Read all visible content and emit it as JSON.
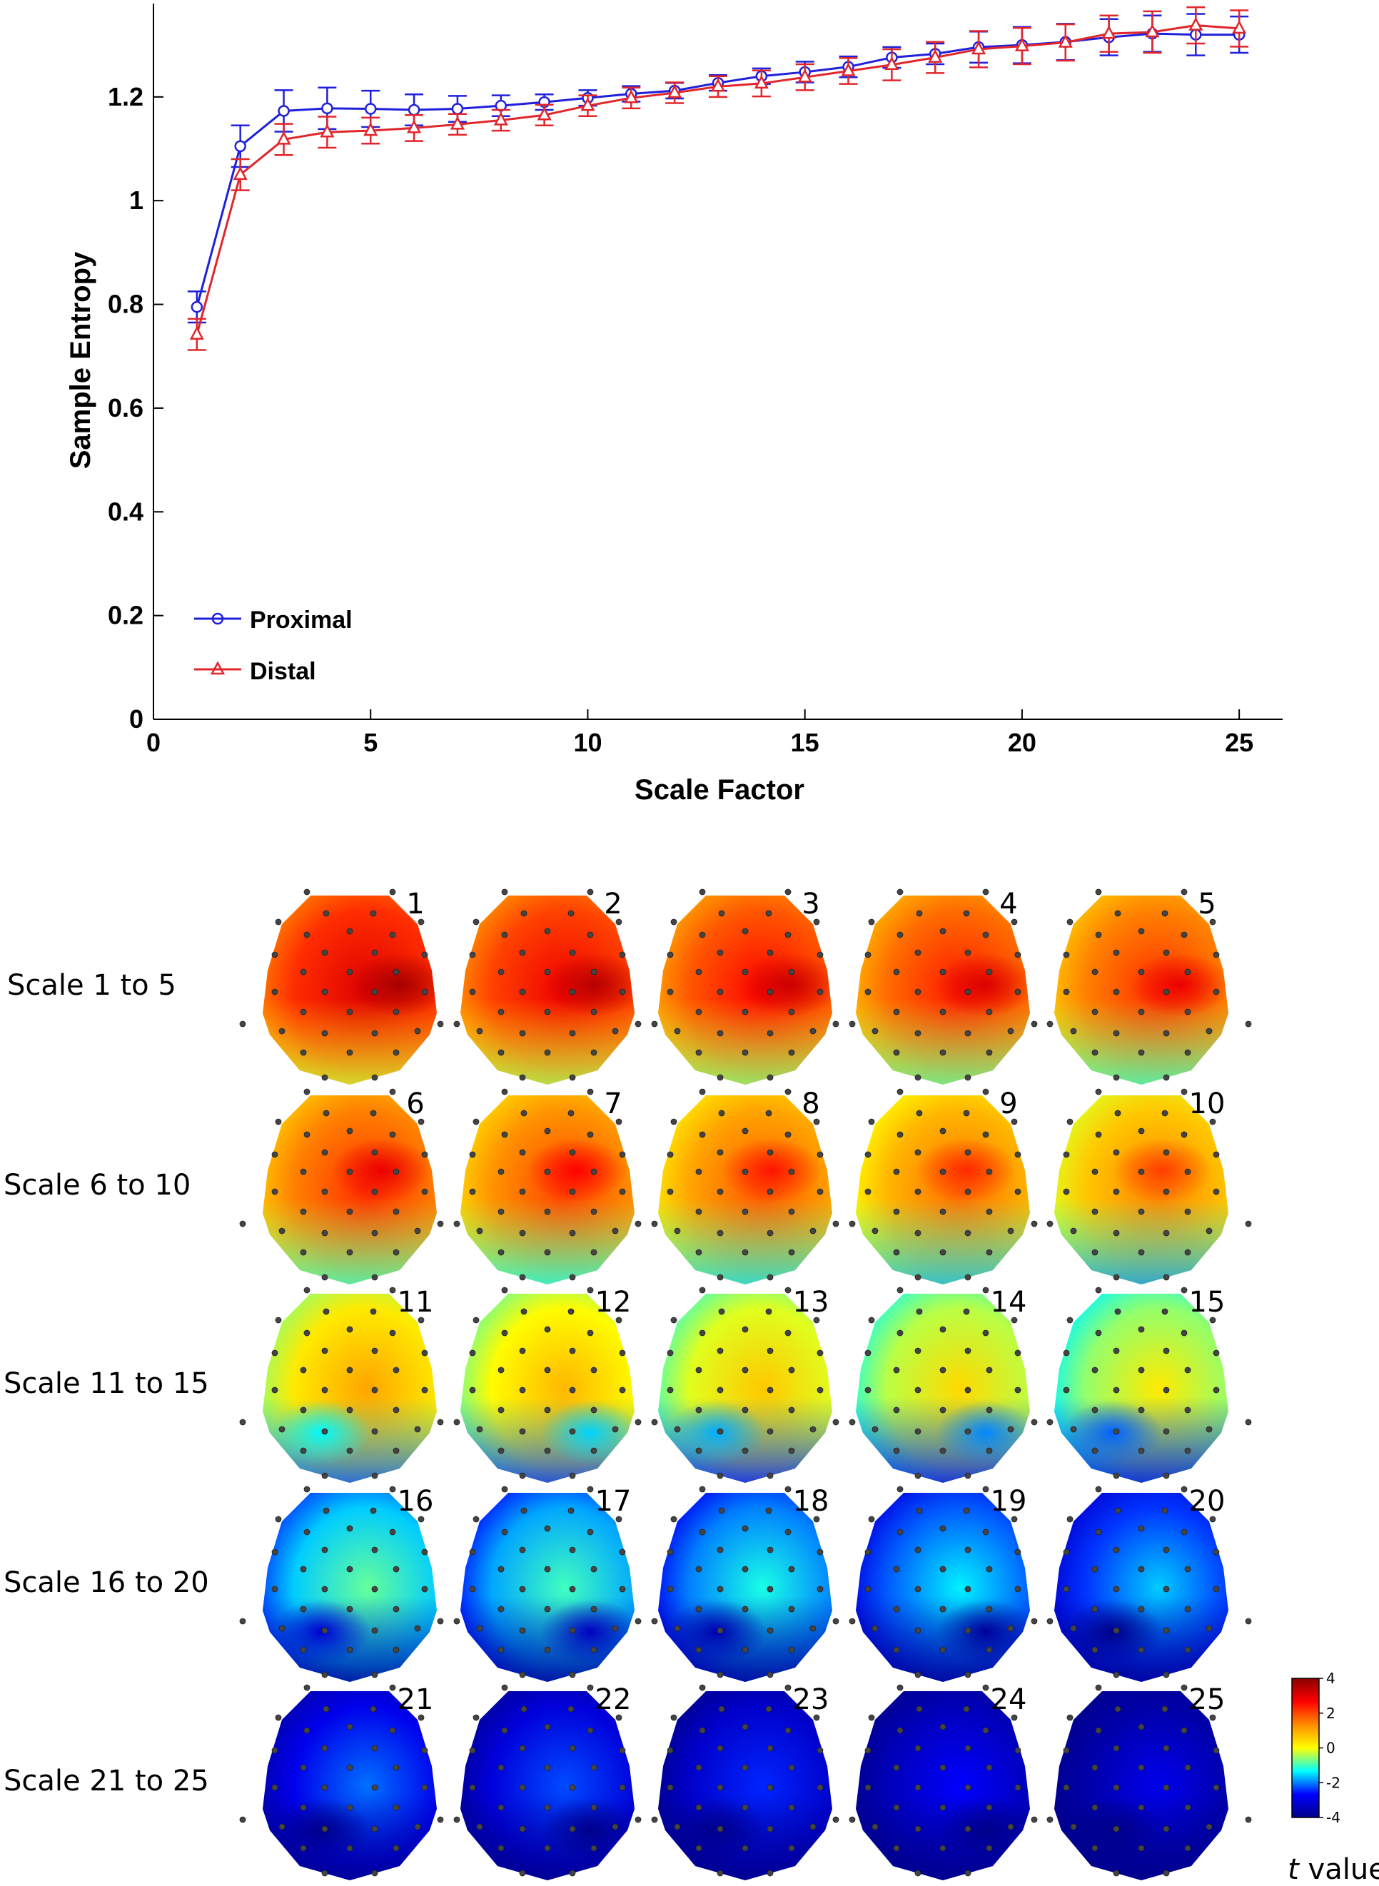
{
  "chart_data": {
    "type": "line",
    "title": "",
    "xlabel": "Scale Factor",
    "ylabel": "Sample Entropy",
    "xlim": [
      0,
      26
    ],
    "ylim": [
      0,
      1.38
    ],
    "x_ticks": [
      0,
      5,
      10,
      15,
      20,
      25
    ],
    "y_ticks": [
      0,
      0.2,
      0.4,
      0.6,
      0.8,
      1,
      1.2
    ],
    "x_tick_labels": [
      "0",
      "5",
      "10",
      "15",
      "20",
      "25"
    ],
    "y_tick_labels": [
      "0",
      "0.2",
      "0.4",
      "0.6",
      "0.8",
      "1",
      "1.2"
    ],
    "legend_position": "bottom-left",
    "x": [
      1,
      2,
      3,
      4,
      5,
      6,
      7,
      8,
      9,
      10,
      11,
      12,
      13,
      14,
      15,
      16,
      17,
      18,
      19,
      20,
      21,
      22,
      23,
      24,
      25
    ],
    "series": [
      {
        "name": "Proximal",
        "color": "#1f1fdc",
        "marker": "circle",
        "values": [
          0.795,
          1.105,
          1.173,
          1.178,
          1.177,
          1.175,
          1.177,
          1.183,
          1.19,
          1.198,
          1.206,
          1.212,
          1.227,
          1.24,
          1.248,
          1.258,
          1.276,
          1.283,
          1.296,
          1.3,
          1.306,
          1.315,
          1.322,
          1.32,
          1.32
        ],
        "errors": [
          0.03,
          0.04,
          0.04,
          0.04,
          0.035,
          0.03,
          0.025,
          0.02,
          0.015,
          0.015,
          0.015,
          0.015,
          0.015,
          0.015,
          0.02,
          0.02,
          0.02,
          0.02,
          0.03,
          0.035,
          0.035,
          0.035,
          0.035,
          0.04,
          0.035
        ]
      },
      {
        "name": "Distal",
        "color": "#e0262b",
        "marker": "triangle",
        "values": [
          0.742,
          1.05,
          1.118,
          1.132,
          1.135,
          1.14,
          1.147,
          1.155,
          1.165,
          1.183,
          1.198,
          1.208,
          1.22,
          1.226,
          1.238,
          1.25,
          1.262,
          1.276,
          1.292,
          1.298,
          1.305,
          1.322,
          1.325,
          1.338,
          1.332
        ],
        "errors": [
          0.03,
          0.03,
          0.03,
          0.03,
          0.025,
          0.025,
          0.02,
          0.02,
          0.02,
          0.02,
          0.02,
          0.02,
          0.02,
          0.025,
          0.025,
          0.025,
          0.03,
          0.03,
          0.035,
          0.035,
          0.035,
          0.035,
          0.04,
          0.035,
          0.035
        ]
      }
    ]
  },
  "maps": {
    "rows": [
      {
        "label": "Scale 1 to 5",
        "scales": [
          "1",
          "2",
          "3",
          "4",
          "5"
        ]
      },
      {
        "label": "Scale 6 to 10",
        "scales": [
          "6",
          "7",
          "8",
          "9",
          "10"
        ]
      },
      {
        "label": "Scale 11 to 15",
        "scales": [
          "11",
          "12",
          "13",
          "14",
          "15"
        ]
      },
      {
        "label": "Scale 16 to 20",
        "scales": [
          "16",
          "17",
          "18",
          "19",
          "20"
        ]
      },
      {
        "label": "Scale 21 to 25",
        "scales": [
          "21",
          "22",
          "23",
          "24",
          "25"
        ]
      }
    ],
    "colorbar": {
      "ticks": [
        "4",
        "2",
        "0",
        "-2",
        "-4"
      ],
      "tick_values": [
        4,
        2,
        0,
        -2,
        -4
      ],
      "label_italic": "t",
      "label_rest": " value",
      "colors": [
        "#8b0000",
        "#ff0000",
        "#ff8c00",
        "#ffff00",
        "#00ffff",
        "#0000ff",
        "#00008b"
      ]
    },
    "intensity": [
      0.78,
      0.68,
      0.53,
      0.3,
      0.14
    ]
  }
}
